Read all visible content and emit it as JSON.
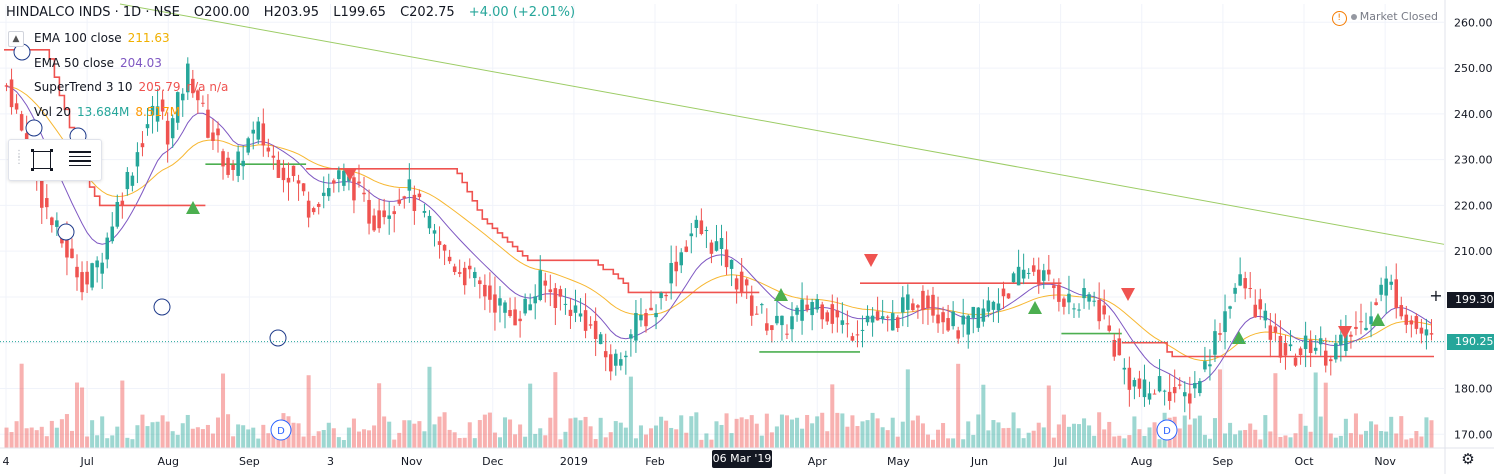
{
  "header": {
    "symbol": "HINDALCO INDS · 1D · NSE",
    "open": "O200.00",
    "high": "H203.95",
    "low": "L199.65",
    "close": "C202.75",
    "change": "+4.00 (+2.01%)"
  },
  "indicators": [
    {
      "name": "EMA 100 close",
      "value": "211.63",
      "value_color": "#f0b000"
    },
    {
      "name": "EMA 50 close",
      "value": "204.03",
      "value_color": "#7e57c2"
    },
    {
      "name": "SuperTrend 3 10",
      "value": "205.79",
      "extra": "n/a n/a",
      "value_color": "#ef5350"
    },
    {
      "name": "Vol 20",
      "value": "13.684M",
      "value2": "8.517M",
      "value_color": "#26a69a",
      "value2_color": "#ff9800"
    }
  ],
  "status": {
    "market": "Market Closed"
  },
  "toolbar_icons": [
    "drag-grip-icon",
    "rectangle-tool-icon",
    "list-icon"
  ],
  "price_badges": {
    "crosshair": {
      "value": "199.30",
      "bg": "#131722",
      "fg": "#ffffff"
    },
    "last": {
      "value": "190.25",
      "bg": "#26a69a",
      "fg": "#ffffff"
    }
  },
  "crosshair_date": "06 Mar '19",
  "colors": {
    "up": "#26a69a",
    "down": "#ef5350",
    "ema100": "#f7b731",
    "ema50": "#7e57c2",
    "st_down": "#ef5350",
    "st_up": "#4caf50",
    "trendline": "#9ccc65"
  },
  "chart_data": {
    "type": "candlestick",
    "y_axis": {
      "ticks": [
        170,
        180,
        190,
        200,
        210,
        220,
        230,
        240,
        250,
        260
      ],
      "range": [
        167,
        264
      ]
    },
    "x_axis": {
      "labels": [
        "4",
        "Jul",
        "Aug",
        "Sep",
        "3",
        "Nov",
        "Dec",
        "2019",
        "Feb",
        "Mar",
        "Apr",
        "May",
        "Jun",
        "Jul",
        "Aug",
        "Sep",
        "Oct",
        "Nov"
      ]
    },
    "series": [
      {
        "name": "EMA 100 close",
        "last": 211.63
      },
      {
        "name": "EMA 50 close",
        "last": 204.03
      },
      {
        "name": "SuperTrend 3 10",
        "last": 205.79
      },
      {
        "name": "Vol 20",
        "last": "13.684M",
        "ma": "8.517M"
      }
    ],
    "close_path": [
      246,
      244,
      240,
      236,
      233,
      229,
      226,
      222,
      219,
      216,
      214,
      212,
      210,
      207,
      206,
      204,
      203,
      205,
      207,
      210,
      213,
      217,
      220,
      223,
      226,
      229,
      232,
      235,
      238,
      240,
      242,
      239,
      236,
      238,
      242,
      246,
      249,
      247,
      244,
      240,
      237,
      235,
      233,
      231,
      228,
      226,
      229,
      232,
      234,
      235,
      236,
      234,
      232,
      230,
      229,
      228,
      227,
      226,
      224,
      222,
      220,
      221,
      222,
      223,
      224,
      225,
      226,
      226,
      225,
      224,
      222,
      220,
      218,
      217,
      218,
      219,
      220,
      221,
      222,
      224,
      223,
      221,
      219,
      217,
      215,
      213,
      211,
      209,
      208,
      207,
      206,
      205,
      204,
      203,
      202,
      201,
      200,
      199,
      198,
      197,
      196,
      196,
      197,
      198,
      199,
      201,
      203,
      202,
      201,
      200,
      199,
      198,
      198,
      197,
      196,
      195,
      193,
      191,
      189,
      187,
      185,
      186,
      188,
      190,
      192,
      194,
      195,
      196,
      197,
      198,
      200,
      203,
      206,
      208,
      210,
      212,
      214,
      215,
      214,
      213,
      212,
      211,
      210,
      208,
      206,
      204,
      202,
      200,
      198,
      197,
      196,
      195,
      194,
      194,
      193,
      194,
      195,
      196,
      197,
      198,
      199,
      199,
      198,
      197,
      196,
      195,
      194,
      193,
      193,
      194,
      195,
      196,
      196,
      195,
      194,
      194,
      195,
      196,
      197,
      198,
      199,
      200,
      200,
      199,
      198,
      197,
      196,
      195,
      194,
      193,
      193,
      194,
      195,
      196,
      197,
      198,
      199,
      200,
      201,
      202,
      203,
      204,
      205,
      206,
      206,
      205,
      204,
      203,
      202,
      201,
      200,
      199,
      198,
      198,
      199,
      200,
      199,
      197,
      195,
      192,
      189,
      186,
      184,
      182,
      181,
      180,
      179,
      179,
      180,
      181,
      181,
      180,
      179,
      178,
      178,
      179,
      181,
      183,
      185,
      188,
      191,
      194,
      197,
      200,
      202,
      203,
      202,
      200,
      198,
      196,
      194,
      192,
      190,
      189,
      188,
      187,
      187,
      188,
      189,
      190,
      190,
      189,
      188,
      188,
      189,
      190,
      191,
      192,
      193,
      194,
      196,
      198,
      200,
      202,
      203,
      202,
      200,
      198,
      196,
      194,
      193,
      192,
      191,
      190
    ]
  }
}
